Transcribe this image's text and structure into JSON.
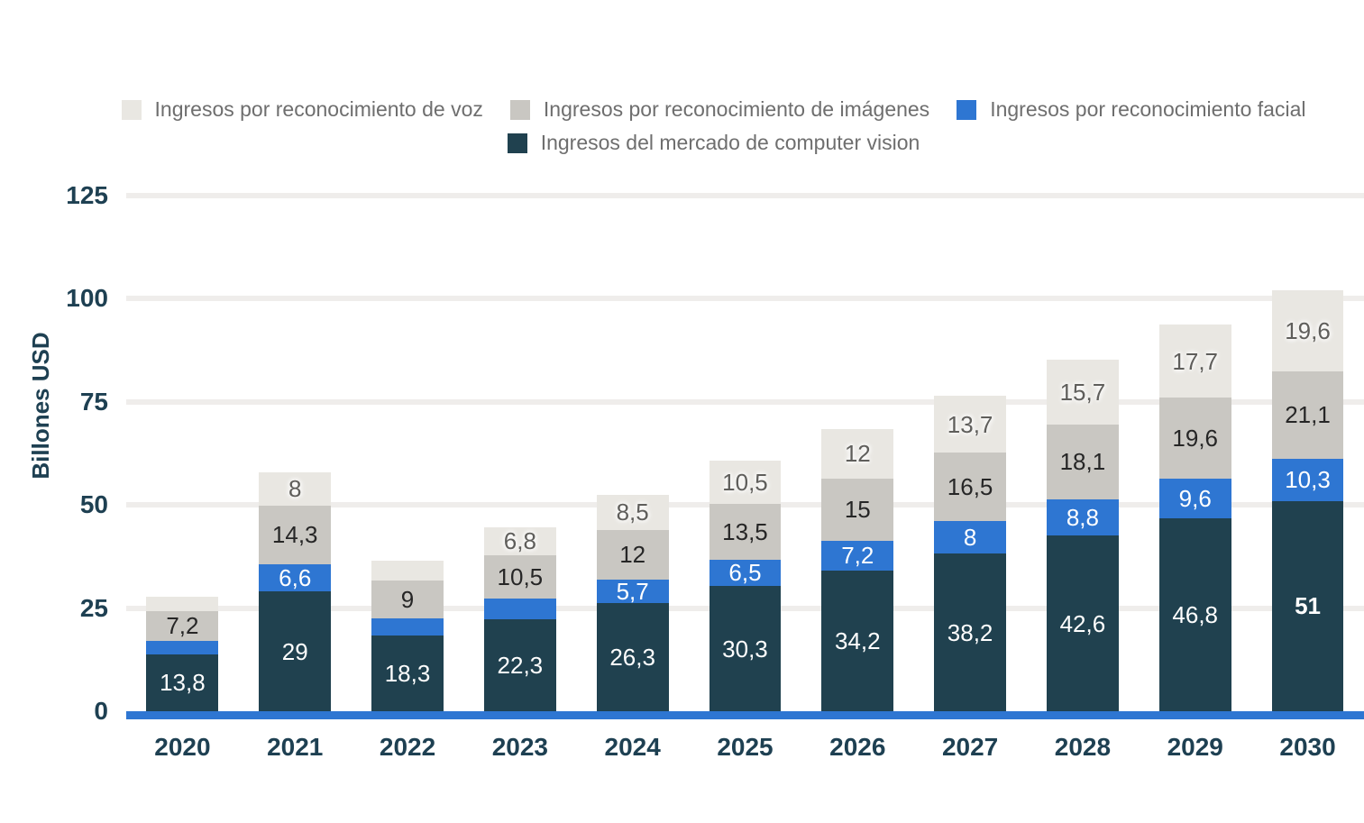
{
  "legend": {
    "text_color": "#6e6e6e",
    "items": [
      {
        "label": "Ingresos por reconocimiento de voz",
        "color": "#e9e7e2"
      },
      {
        "label": "Ingresos por reconocimiento de imágenes",
        "color": "#c9c7c2"
      },
      {
        "label": "Ingresos por reconocimiento facial",
        "color": "#2e76d2"
      },
      {
        "label": "Ingresos del mercado de computer vision",
        "color": "#20414f"
      }
    ]
  },
  "axis": {
    "tick_color": "#1e4052",
    "grid_color": "#efedeb",
    "baseline_color": "#2e76d2"
  },
  "chart_data": {
    "type": "bar",
    "stacked": true,
    "title": "",
    "xlabel": "",
    "ylabel": "Billones USD",
    "ylim": [
      0,
      125
    ],
    "yticks": [
      0,
      25,
      50,
      75,
      100,
      125
    ],
    "grid": true,
    "legend_position": "top",
    "value_decimal_separator": ",",
    "categories": [
      "2020",
      "2021",
      "2022",
      "2023",
      "2024",
      "2025",
      "2026",
      "2027",
      "2028",
      "2029",
      "2030"
    ],
    "series": [
      {
        "name": "Ingresos del mercado de computer vision",
        "color": "#20414f",
        "label_color": "#ffffff",
        "values": [
          13.8,
          29,
          18.3,
          22.3,
          26.3,
          30.3,
          34.2,
          38.2,
          42.6,
          46.8,
          51
        ],
        "labels": [
          "13,8",
          "29",
          "18,3",
          "22,3",
          "26,3",
          "30,3",
          "34,2",
          "38,2",
          "42,6",
          "46,8",
          {
            "text": "51",
            "bold": true
          }
        ]
      },
      {
        "name": "Ingresos por reconocimiento facial",
        "color": "#2e76d2",
        "label_color": "#ffffff",
        "values": [
          3.3,
          6.6,
          4.3,
          5.0,
          5.7,
          6.5,
          7.2,
          8,
          8.8,
          9.6,
          10.3
        ],
        "labels": [
          "",
          "6,6",
          "",
          "",
          "5,7",
          "6,5",
          "7,2",
          "8",
          "8,8",
          "9,6",
          "10,3"
        ]
      },
      {
        "name": "Ingresos por reconocimiento de imágenes",
        "color": "#c9c7c2",
        "label_color": "#262626",
        "values": [
          7.2,
          14.3,
          9,
          10.5,
          12,
          13.5,
          15,
          16.5,
          18.1,
          19.6,
          21.1
        ],
        "labels": [
          "7,2",
          "14,3",
          "9",
          "10,5",
          "12",
          "13,5",
          "15",
          "16,5",
          "18,1",
          "19,6",
          "21,1"
        ]
      },
      {
        "name": "Ingresos por reconocimiento de voz",
        "color": "#e9e7e2",
        "label_color": "#5f5e5b",
        "label_halo": true,
        "values": [
          3.4,
          8,
          4.8,
          6.8,
          8.5,
          10.5,
          12,
          13.7,
          15.7,
          17.7,
          19.6
        ],
        "labels": [
          "",
          "8",
          "",
          "6,8",
          "8,5",
          "10,5",
          "12",
          "13,7",
          "15,7",
          "17,7",
          "19,6"
        ]
      }
    ]
  }
}
